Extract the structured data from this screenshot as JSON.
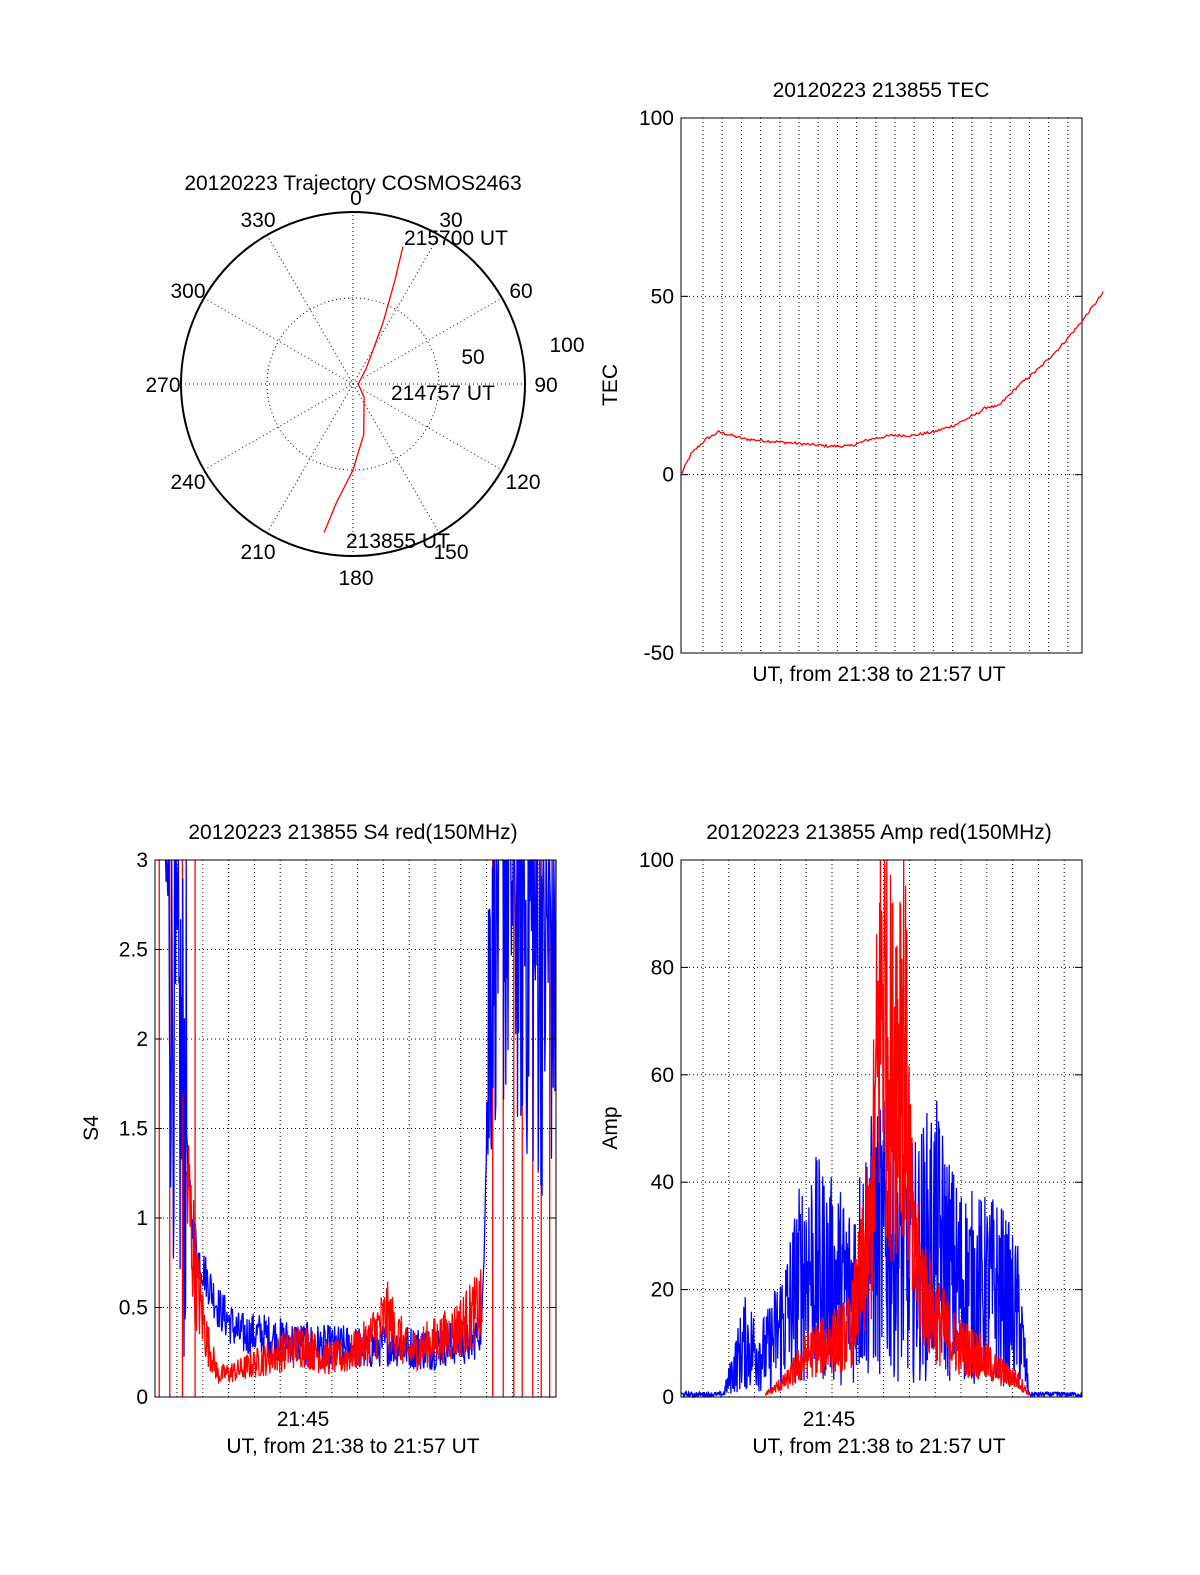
{
  "chart_data": [
    {
      "type": "polar",
      "title": "20120223 Trajectory COSMOS2463",
      "angle_labels": [
        "0",
        "30",
        "60",
        "90",
        "120",
        "150",
        "180",
        "210",
        "240",
        "270",
        "300",
        "330"
      ],
      "radius_labels": [
        "50",
        "100"
      ],
      "rlim": [
        0,
        100
      ],
      "grid": true,
      "series": [
        {
          "color": "#ff0000",
          "points": [
            {
              "az": 191,
              "r": 88
            },
            {
              "az": 188,
              "r": 70
            },
            {
              "az": 180,
              "r": 50
            },
            {
              "az": 168,
              "r": 30
            },
            {
              "az": 140,
              "r": 10
            },
            {
              "az": 90,
              "r": 3
            },
            {
              "az": 40,
              "r": 12
            },
            {
              "az": 26,
              "r": 40
            },
            {
              "az": 22,
              "r": 65
            },
            {
              "az": 20,
              "r": 85
            }
          ]
        }
      ],
      "annotations": [
        "215700 UT",
        "214757 UT",
        "213855 UT"
      ]
    },
    {
      "type": "line",
      "title": "20120223 213855 TEC",
      "xlabel": "UT, from 21:38 to 21:57 UT",
      "ylabel": "TEC",
      "ylim": [
        -50,
        100
      ],
      "yticks": [
        "-50",
        "0",
        "50",
        "100"
      ],
      "grid": true,
      "series": [
        {
          "color": "#ff0000",
          "x": [
            0,
            0.5,
            1.2,
            1.8,
            3,
            5,
            7,
            8,
            9,
            10,
            11,
            12,
            13,
            14,
            14.5,
            15,
            16,
            17,
            18,
            19,
            20
          ],
          "values": [
            0,
            6,
            10,
            12,
            10,
            9,
            8,
            8,
            10,
            11,
            11,
            12,
            14,
            17,
            19,
            19,
            25,
            30,
            36,
            43,
            51
          ]
        }
      ]
    },
    {
      "type": "line",
      "title": "20120223 213855 S4 red(150MHz)",
      "xlabel": "UT, from 21:38 to 21:57 UT",
      "ylabel": "S4",
      "xtick_labels": [
        "21:45"
      ],
      "ylim": [
        0,
        3
      ],
      "yticks": [
        "0",
        "0.5",
        "1",
        "1.5",
        "2",
        "2.5",
        "3"
      ],
      "grid": true,
      "series": [
        {
          "color": "#0000ff",
          "x": [
            0.5,
            1.0,
            1.5,
            1.7,
            2.0,
            3,
            4,
            5,
            6,
            7,
            8,
            9,
            10,
            11,
            12,
            13,
            14,
            15,
            15.5,
            16,
            17,
            18,
            19
          ],
          "values": [
            3.0,
            2.0,
            1.5,
            1.0,
            0.8,
            0.5,
            0.35,
            0.35,
            0.32,
            0.3,
            0.28,
            0.28,
            0.27,
            0.3,
            0.28,
            0.27,
            0.3,
            0.3,
            0.4,
            3.0,
            3.0,
            2.6,
            2.6
          ]
        },
        {
          "color": "#ff0000",
          "x": [
            1.5,
            2.0,
            2.5,
            3,
            4,
            5,
            6,
            7,
            8,
            9,
            10,
            11,
            12,
            13,
            14,
            15,
            15.5
          ],
          "values": [
            1.2,
            0.6,
            0.3,
            0.12,
            0.15,
            0.2,
            0.25,
            0.3,
            0.22,
            0.22,
            0.3,
            0.45,
            0.25,
            0.3,
            0.35,
            0.45,
            0.5
          ]
        }
      ]
    },
    {
      "type": "line",
      "title": "20120223 213855 Amp red(150MHz)",
      "xlabel": "UT, from 21:38 to 21:57 UT",
      "ylabel": "Amp",
      "xtick_labels": [
        "21:45"
      ],
      "ylim": [
        0,
        100
      ],
      "yticks": [
        "0",
        "20",
        "40",
        "60",
        "80",
        "100"
      ],
      "grid": true,
      "series": [
        {
          "color": "#0000ff",
          "x": [
            0,
            2,
            3,
            4,
            5,
            6,
            7,
            8,
            9,
            10,
            11,
            12,
            13,
            14,
            15,
            16,
            16.5,
            17,
            19
          ],
          "values": [
            0.5,
            0.5,
            10,
            8,
            15,
            25,
            22,
            20,
            28,
            30,
            25,
            30,
            22,
            20,
            20,
            15,
            0.5,
            0.5,
            0.5
          ]
        },
        {
          "color": "#ff0000",
          "x": [
            4,
            5,
            6,
            7,
            8,
            9,
            9.5,
            10,
            10.5,
            11,
            12,
            13,
            14,
            15,
            16,
            16.5
          ],
          "values": [
            0.5,
            3,
            8,
            10,
            12,
            30,
            80,
            60,
            75,
            25,
            15,
            10,
            8,
            5,
            3,
            0.5
          ]
        }
      ]
    }
  ]
}
